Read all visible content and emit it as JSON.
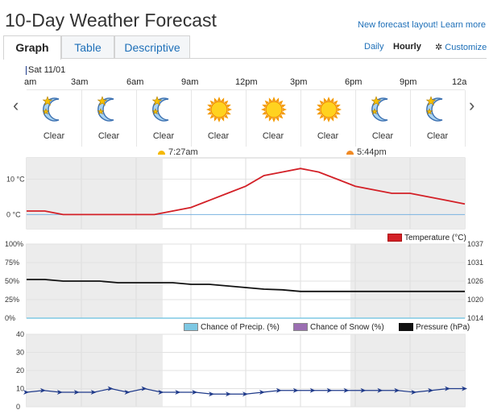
{
  "header": {
    "title": "10-Day Weather Forecast",
    "new_layout_link": "New forecast layout! Learn more"
  },
  "tabs": [
    {
      "label": "Graph",
      "active": true
    },
    {
      "label": "Table",
      "active": false
    },
    {
      "label": "Descriptive",
      "active": false
    }
  ],
  "view": {
    "daily": "Daily",
    "hourly": "Hourly",
    "customize": "Customize",
    "customize_icon": "gear-icon"
  },
  "timeline": {
    "date": "Sat 11/01",
    "hours": [
      "am",
      "3am",
      "6am",
      "9am",
      "12pm",
      "3pm",
      "6pm",
      "9pm",
      "12a"
    ],
    "prev_icon": "chevron-left-icon",
    "next_icon": "chevron-right-icon"
  },
  "conditions": [
    {
      "label": "Clear",
      "icon": "moon-stars-icon"
    },
    {
      "label": "Clear",
      "icon": "moon-stars-icon"
    },
    {
      "label": "Clear",
      "icon": "moon-stars-icon"
    },
    {
      "label": "Clear",
      "icon": "sun-icon"
    },
    {
      "label": "Clear",
      "icon": "sun-icon"
    },
    {
      "label": "Clear",
      "icon": "sun-icon"
    },
    {
      "label": "Clear",
      "icon": "moon-stars-icon"
    },
    {
      "label": "Clear",
      "icon": "moon-stars-icon"
    }
  ],
  "sun": {
    "sunrise": "7:27am",
    "sunset": "5:44pm",
    "sunrise_color": "#f5b800",
    "sunset_color": "#f08a24"
  },
  "chart_data": [
    {
      "type": "line",
      "series": [
        {
          "name": "Temperature (°C)",
          "color": "#d32027",
          "values": [
            1,
            1,
            0,
            0,
            0,
            0,
            0,
            0,
            1,
            2,
            4,
            6,
            8,
            11,
            12,
            13,
            12,
            10,
            8,
            7,
            6,
            6,
            5,
            4,
            3
          ]
        }
      ],
      "y_ticks": [
        "10 °C",
        "0 °C"
      ],
      "ylim": [
        -4,
        16
      ],
      "x_hours": [
        0,
        1,
        2,
        3,
        4,
        5,
        6,
        7,
        8,
        9,
        10,
        11,
        12,
        13,
        14,
        15,
        16,
        17,
        18,
        19,
        20,
        21,
        22,
        23,
        24
      ]
    },
    {
      "type": "line",
      "series": [
        {
          "name": "Chance of Precip. (%)",
          "color": "#7ec8e3",
          "values": [
            0,
            0,
            0,
            0,
            0,
            0,
            0,
            0,
            0,
            0,
            0,
            0,
            0,
            0,
            0,
            0,
            0,
            0,
            0,
            0,
            0,
            0,
            0,
            0,
            0
          ]
        },
        {
          "name": "Chance of Snow (%)",
          "color": "#9b6fb2",
          "values": [
            0,
            0,
            0,
            0,
            0,
            0,
            0,
            0,
            0,
            0,
            0,
            0,
            0,
            0,
            0,
            0,
            0,
            0,
            0,
            0,
            0,
            0,
            0,
            0,
            0
          ]
        },
        {
          "name": "Pressure (hPa)",
          "color": "#111111",
          "values": [
            1026,
            1026,
            1025.5,
            1025.5,
            1025.5,
            1025,
            1025,
            1025,
            1025,
            1024.5,
            1024.5,
            1024,
            1023.5,
            1023,
            1022.8,
            1022.3,
            1022.3,
            1022.3,
            1022.3,
            1022.3,
            1022.3,
            1022.3,
            1022.3,
            1022.3,
            1022.3
          ]
        }
      ],
      "left_ticks": [
        "100%",
        "75%",
        "50%",
        "25%",
        "0%"
      ],
      "right_ticks": [
        "1037",
        "1031",
        "1026",
        "1020",
        "1014"
      ],
      "ylim_left": [
        0,
        100
      ],
      "ylim_right": [
        1014,
        1037
      ]
    },
    {
      "type": "line",
      "series": [
        {
          "name": "Wind",
          "color": "#1f3a8a",
          "values": [
            8,
            9,
            8,
            8,
            8,
            10,
            8,
            10,
            8,
            8,
            8,
            7,
            7,
            7,
            8,
            9,
            9,
            9,
            9,
            9,
            9,
            9,
            9,
            8,
            9,
            10,
            10
          ]
        }
      ],
      "y_ticks": [
        "40",
        "30",
        "20",
        "10",
        "0"
      ],
      "ylim": [
        0,
        40
      ]
    }
  ]
}
